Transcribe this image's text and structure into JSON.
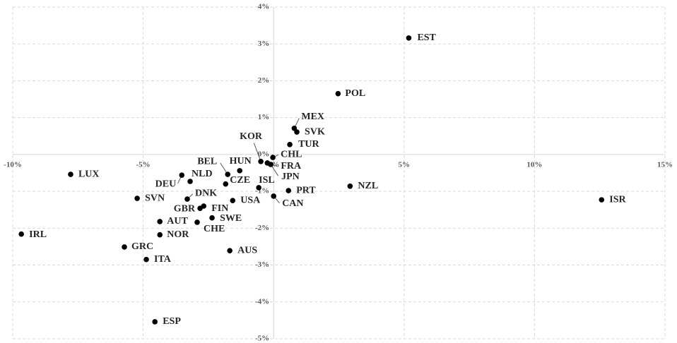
{
  "chart_data": {
    "type": "scatter",
    "xlim": [
      -10,
      15
    ],
    "ylim": [
      -5,
      4
    ],
    "xticks": [
      {
        "value": -10,
        "label": "-10%"
      },
      {
        "value": -5,
        "label": "-5%"
      },
      {
        "value": 0,
        "label": "0%"
      },
      {
        "value": 5,
        "label": "5%"
      },
      {
        "value": 10,
        "label": "10%"
      },
      {
        "value": 15,
        "label": "15%"
      }
    ],
    "yticks": [
      {
        "value": -5,
        "label": "-5%"
      },
      {
        "value": -4,
        "label": "-4%"
      },
      {
        "value": -3,
        "label": "-3%"
      },
      {
        "value": -2,
        "label": "-2%"
      },
      {
        "value": -1,
        "label": "-1%"
      },
      {
        "value": 0,
        "label": "0%"
      },
      {
        "value": 1,
        "label": "1%"
      },
      {
        "value": 2,
        "label": "2%"
      },
      {
        "value": 3,
        "label": "3%"
      },
      {
        "value": 4,
        "label": "4%"
      }
    ],
    "grid": true,
    "color": "#000000",
    "points": [
      {
        "label": "EST",
        "x": 5.18,
        "y": 3.16
      },
      {
        "label": "POL",
        "x": 2.47,
        "y": 1.65
      },
      {
        "label": "MEX",
        "x": 0.79,
        "y": 0.71
      },
      {
        "label": "SVK",
        "x": 0.89,
        "y": 0.61
      },
      {
        "label": "TUR",
        "x": 0.62,
        "y": 0.27
      },
      {
        "label": "CHL",
        "x": -0.03,
        "y": -0.08
      },
      {
        "label": "KOR",
        "x": -0.49,
        "y": -0.19
      },
      {
        "label": "FRA",
        "x": -0.24,
        "y": -0.23
      },
      {
        "label": "JPN",
        "x": -0.11,
        "y": -0.27
      },
      {
        "label": "HUN",
        "x": -1.3,
        "y": -0.44
      },
      {
        "label": "BEL",
        "x": -1.76,
        "y": -0.54
      },
      {
        "label": "NLD",
        "x": -3.2,
        "y": -0.73
      },
      {
        "label": "DEU",
        "x": -3.52,
        "y": -0.56
      },
      {
        "label": "CZE",
        "x": -1.84,
        "y": -0.8
      },
      {
        "label": "ISL",
        "x": -0.57,
        "y": -0.9
      },
      {
        "label": "PRT",
        "x": 0.57,
        "y": -0.98
      },
      {
        "label": "CAN",
        "x": 0.0,
        "y": -1.13
      },
      {
        "label": "NZL",
        "x": 2.93,
        "y": -0.86
      },
      {
        "label": "ISR",
        "x": 12.57,
        "y": -1.23
      },
      {
        "label": "LUX",
        "x": -7.78,
        "y": -0.54
      },
      {
        "label": "SVN",
        "x": -5.23,
        "y": -1.19
      },
      {
        "label": "DNK",
        "x": -3.31,
        "y": -1.21
      },
      {
        "label": "USA",
        "x": -1.57,
        "y": -1.25
      },
      {
        "label": "GBR",
        "x": -2.82,
        "y": -1.46
      },
      {
        "label": "FIN",
        "x": -2.68,
        "y": -1.4
      },
      {
        "label": "SWE",
        "x": -2.36,
        "y": -1.72
      },
      {
        "label": "AUT",
        "x": -4.36,
        "y": -1.82
      },
      {
        "label": "CHE",
        "x": -2.93,
        "y": -1.84
      },
      {
        "label": "NOR",
        "x": -4.36,
        "y": -2.18
      },
      {
        "label": "IRL",
        "x": -9.67,
        "y": -2.16
      },
      {
        "label": "GRC",
        "x": -5.72,
        "y": -2.51
      },
      {
        "label": "ITA",
        "x": -4.88,
        "y": -2.85
      },
      {
        "label": "AUS",
        "x": -1.68,
        "y": -2.61
      },
      {
        "label": "ESP",
        "x": -4.55,
        "y": -4.54
      }
    ]
  }
}
